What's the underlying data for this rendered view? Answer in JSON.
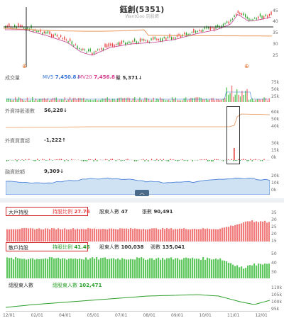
{
  "header": {
    "title": "鈺創(5351)",
    "watermark": "WantGoo 玩股網"
  },
  "price_axis": [
    "45",
    "40",
    "35",
    "30",
    "25"
  ],
  "event_badge": "⊕",
  "volume": {
    "label": "成交量",
    "ma5_label": "MV5",
    "ma5_value": "7,450.8",
    "ma20_label": "MV20",
    "ma20_value": "7,456.8",
    "qty_label": "量",
    "qty_value": "5,371",
    "axis": [
      "75k",
      "50k",
      "25k"
    ]
  },
  "foreign_hold": {
    "label": "外資持股張數",
    "value": "56,228",
    "axis": [
      "60k",
      "50k",
      "40k"
    ]
  },
  "foreign_net": {
    "label": "外資買賣超",
    "value": "-1,222",
    "axis": [
      "30k",
      "15k",
      "0k"
    ]
  },
  "balance": {
    "label": "融資餘額",
    "value": "9,309",
    "axis": [
      "20k",
      "10k",
      "0k"
    ]
  },
  "big_holders": {
    "label": "大戶持股",
    "ratio_label": "持股比例",
    "ratio_value": "27.76",
    "people_label": "股東人數",
    "people_value": "47",
    "sheets_label": "張數",
    "sheets_value": "90,491",
    "axis": [
      "35",
      "30",
      "25",
      "20",
      "15"
    ]
  },
  "retail_holders": {
    "label": "散戶持股",
    "ratio_label": "持股比例",
    "ratio_value": "41.45",
    "people_label": "股東人數",
    "people_value": "100,038",
    "sheets_label": "張數",
    "sheets_value": "135,041",
    "axis": [
      "50",
      "40",
      "30"
    ]
  },
  "total_holders": {
    "label": "總股東人數",
    "people_label": "總股東人數",
    "people_value": "102,471",
    "axis": [
      "110k",
      "105k",
      "100k",
      "95k"
    ]
  },
  "x_axis": [
    "12/01",
    "02/01",
    "04/01",
    "05/01",
    "07/01",
    "08/01",
    "09/01",
    "10/01",
    "11/01",
    "12/01"
  ],
  "colors": {
    "up": "#e83a3a",
    "down": "#2ca02c",
    "ma": "#e8965a",
    "green_bar": "#5ec85e",
    "red_bar": "#ef7b7b"
  },
  "icons": {
    "collapse": "chevron-up-icon"
  }
}
